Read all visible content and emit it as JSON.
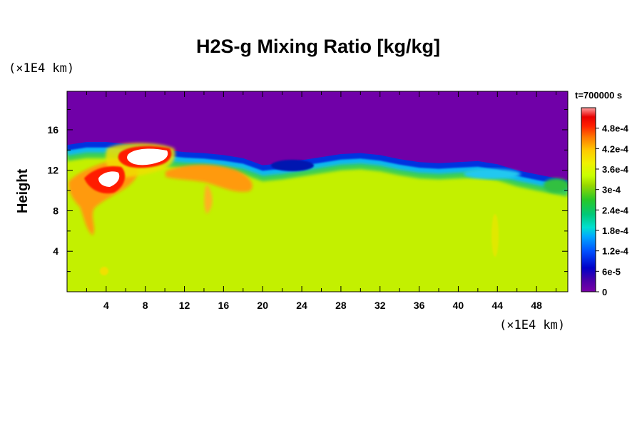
{
  "chart_data": {
    "type": "heatmap",
    "title": "H2S-g Mixing Ratio [kg/kg]",
    "ylabel": "Height",
    "x_unit": "(×1E4 km)",
    "y_unit": "(×1E4 km)",
    "time_label": "t=700000 s",
    "x_ticks": [
      "4",
      "8",
      "12",
      "16",
      "20",
      "24",
      "28",
      "32",
      "36",
      "40",
      "44",
      "48"
    ],
    "x_tick_values": [
      4,
      8,
      12,
      16,
      20,
      24,
      28,
      32,
      36,
      40,
      44,
      48
    ],
    "y_ticks": [
      "4",
      "8",
      "12",
      "16"
    ],
    "y_tick_values": [
      4,
      8,
      12,
      16
    ],
    "xlim": [
      0,
      51.2
    ],
    "ylim": [
      0,
      19.8
    ],
    "colorbar": {
      "labels": [
        "4.8e-4",
        "4.2e-4",
        "3.6e-4",
        "3e-4",
        "2.4e-4",
        "1.8e-4",
        "1.2e-4",
        "6e-5",
        "0"
      ],
      "label_values": [
        0.00048,
        0.00042,
        0.00036,
        0.0003,
        0.00024,
        0.00018,
        0.00012,
        6e-05,
        0
      ],
      "range": [
        0,
        0.00054
      ]
    },
    "field_summary": {
      "upper_layer_value": 0,
      "lower_layer_value": 0.00031,
      "transition_height_profile": {
        "x": [
          0,
          2,
          4,
          6,
          8,
          10,
          12,
          14,
          16,
          18,
          20,
          22,
          24,
          26,
          28,
          30,
          32,
          34,
          36,
          38,
          40,
          42,
          44,
          46,
          48,
          51.2
        ],
        "height": [
          14.5,
          14.8,
          14.8,
          14.6,
          14.5,
          14.0,
          13.8,
          13.7,
          13.5,
          13.2,
          12.5,
          12.7,
          13.0,
          13.3,
          13.6,
          13.7,
          13.5,
          13.1,
          12.8,
          12.7,
          12.8,
          12.9,
          12.6,
          12.0,
          11.6,
          11.0
        ]
      },
      "maxima": [
        {
          "x": 9.0,
          "y": 13.2,
          "value": 0.00054
        },
        {
          "x": 4.8,
          "y": 11.5,
          "value": 0.00054
        }
      ]
    }
  }
}
